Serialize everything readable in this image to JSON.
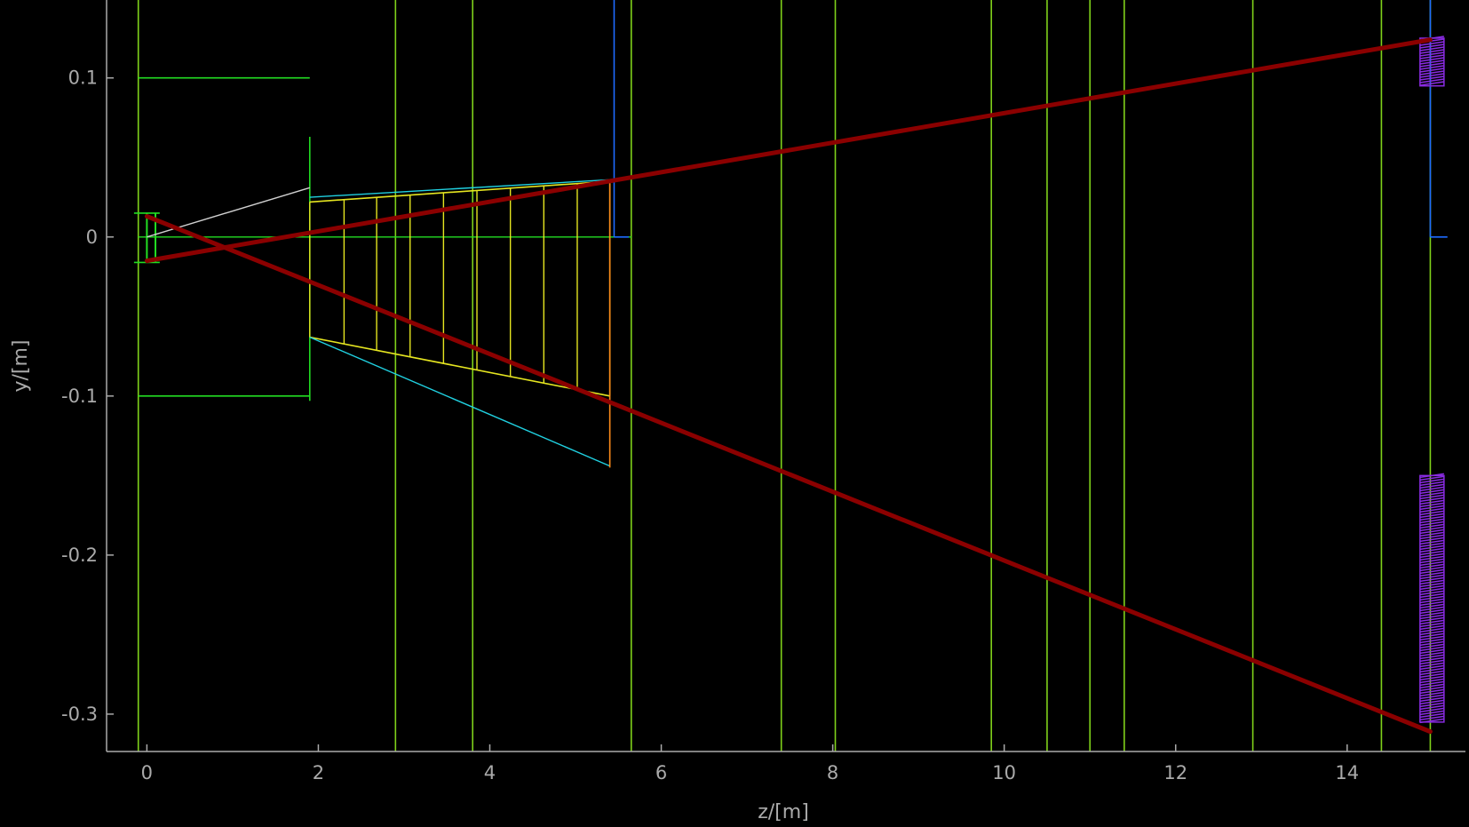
{
  "chart_data": {
    "type": "line",
    "title": "",
    "xlabel": "z/[m]",
    "ylabel": "y/[m]",
    "xlim": [
      -0.47,
      15.38
    ],
    "ylim": [
      -0.3235,
      0.149
    ],
    "x_ticks": [
      0,
      2,
      4,
      6,
      8,
      10,
      12,
      14
    ],
    "y_ticks": [
      0.1,
      0,
      -0.1,
      -0.2,
      -0.3
    ],
    "y_tick_labels": [
      "0.1",
      "0",
      "-0.1",
      "-0.2",
      "-0.3"
    ],
    "grid": false,
    "colors": {
      "background": "#000000",
      "axis": "#aaaaaa",
      "planes": "#7fd11a",
      "beampipe": "#22dd22",
      "taper": "#e5e520",
      "taper_outline": "#20d0e0",
      "backplate": "#ff8c1a",
      "envelope": "#8b0000",
      "shield": "#1e6bff",
      "beam": "#d0d0d0",
      "hits": "#8a2be2"
    },
    "vertical_planes_z": [
      -0.1,
      2.9,
      3.8,
      5.65,
      7.4,
      8.03,
      9.85,
      10.5,
      11.0,
      11.4,
      12.9,
      14.4,
      14.97
    ],
    "envelope": [
      {
        "name": "",
        "x": [
          0.0,
          14.97
        ],
        "y": [
          -0.015,
          0.124
        ]
      },
      {
        "name": "",
        "x": [
          0.0,
          14.97
        ],
        "y": [
          0.013,
          -0.311
        ]
      }
    ],
    "beam_line": {
      "x": [
        0.0,
        1.9
      ],
      "y": [
        0.0,
        0.031
      ]
    },
    "beampipe": {
      "y_top": 0.1,
      "y_bottom": -0.1,
      "x": [
        -0.1,
        1.9
      ],
      "flange": {
        "x": 1.9,
        "y": [
          -0.103,
          0.063
        ]
      },
      "axis_line": {
        "x": [
          -0.1,
          5.65
        ],
        "y": 0.0
      },
      "entrance": {
        "x": [
          0.0,
          0.1
        ],
        "y": [
          -0.016,
          0.015
        ]
      }
    },
    "taper": {
      "top": {
        "x": [
          1.9,
          5.4
        ],
        "y": [
          0.022,
          0.035
        ]
      },
      "top_outline": {
        "x": [
          1.9,
          5.4
        ],
        "y": [
          0.025,
          0.036
        ]
      },
      "bottom": {
        "x": [
          1.9,
          5.4
        ],
        "y": [
          -0.063,
          -0.1
        ]
      },
      "bottom_outline": {
        "x": [
          1.9,
          5.4
        ],
        "y": [
          -0.063,
          -0.144
        ]
      },
      "rib_z": [
        1.9,
        2.3,
        2.68,
        3.07,
        3.46,
        3.85,
        4.24,
        4.63,
        5.02,
        5.4
      ],
      "backplate": {
        "x": 5.4,
        "y": [
          -0.145,
          0.036
        ]
      }
    },
    "shield": {
      "x": 5.45,
      "y": [
        0.0,
        0.149
      ],
      "tick_z": [
        5.45,
        5.62
      ]
    },
    "detector": {
      "x": 14.97,
      "y": [
        0.0,
        0.149
      ],
      "tick_z": [
        14.97,
        15.17
      ],
      "hits_upper": {
        "x": [
          14.85,
          15.13
        ],
        "y": [
          0.095,
          0.125
        ]
      },
      "hits_lower": {
        "x": [
          14.85,
          15.13
        ],
        "y": [
          -0.305,
          -0.15
        ]
      }
    }
  }
}
